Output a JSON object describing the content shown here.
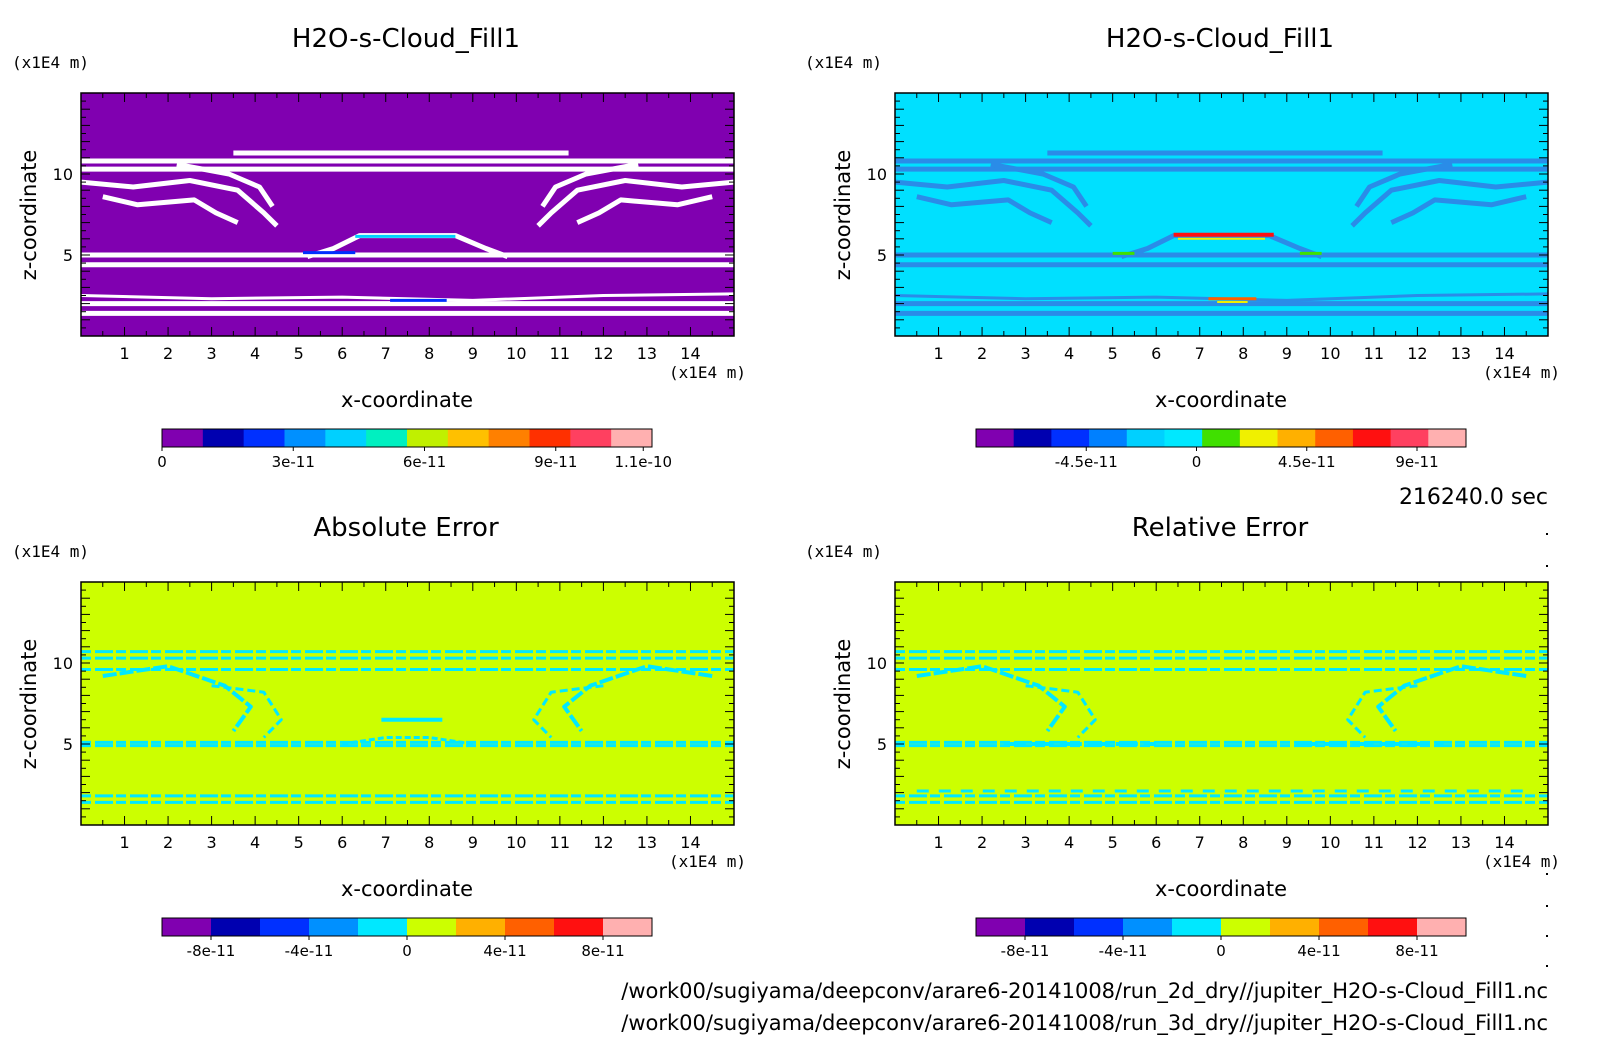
{
  "time_label": "216240.0 sec",
  "file_paths": [
    "/work00/sugiyama/deepconv/arare6-20141008/run_2d_dry//jupiter_H2O-s-Cloud_Fill1.nc",
    "/work00/sugiyama/deepconv/arare6-20141008/run_3d_dry//jupiter_H2O-s-Cloud_Fill1.nc"
  ],
  "chart_data": [
    {
      "type": "heatmap",
      "title": "H2O-s-Cloud_Fill1",
      "xlabel": "x-coordinate",
      "ylabel": "z-coordinate",
      "xunit": "(x1E4 m)",
      "yunit": "(x1E4 m)",
      "xlim": [
        0,
        15
      ],
      "ylim": [
        0,
        15
      ],
      "xticks": [
        1,
        2,
        3,
        4,
        5,
        6,
        7,
        8,
        9,
        10,
        11,
        12,
        13,
        14
      ],
      "yticks": [
        5,
        10
      ],
      "background_color": "#8000b0",
      "pattern": "white",
      "colorbar": {
        "colors": [
          "#8000b0",
          "#0000b0",
          "#0030ff",
          "#0090ff",
          "#00d0ff",
          "#00f0c0",
          "#c0f000",
          "#ffc000",
          "#ff8000",
          "#ff3000",
          "#ff4060",
          "#ffb0b0"
        ],
        "tick_labels": [
          "0",
          "3e-11",
          "6e-11",
          "9e-11",
          "1.1e-10"
        ],
        "tick_values": [
          0,
          3e-11,
          6e-11,
          9e-11,
          1.1e-10
        ],
        "range": [
          0,
          1.12e-10
        ]
      }
    },
    {
      "type": "heatmap",
      "title": "H2O-s-Cloud_Fill1",
      "xlabel": "x-coordinate",
      "ylabel": "z-coordinate",
      "xunit": "(x1E4 m)",
      "yunit": "(x1E4 m)",
      "xlim": [
        0,
        15
      ],
      "ylim": [
        0,
        15
      ],
      "xticks": [
        1,
        2,
        3,
        4,
        5,
        6,
        7,
        8,
        9,
        10,
        11,
        12,
        13,
        14
      ],
      "yticks": [
        5,
        10
      ],
      "background_color": "#00e0ff",
      "pattern": "blue",
      "colorbar": {
        "colors": [
          "#8000b0",
          "#0000b0",
          "#0030ff",
          "#0080ff",
          "#00d0ff",
          "#00e8ff",
          "#40e000",
          "#f0f000",
          "#ffb000",
          "#ff6000",
          "#ff1010",
          "#ff4060",
          "#ffb0b0"
        ],
        "tick_labels": [
          "-4.5e-11",
          "0",
          "4.5e-11",
          "9e-11"
        ],
        "tick_values": [
          -4.5e-11,
          0,
          4.5e-11,
          9e-11
        ],
        "range": [
          -9e-11,
          1.1e-10
        ]
      }
    },
    {
      "type": "heatmap",
      "title": "Absolute Error",
      "xlabel": "x-coordinate",
      "ylabel": "z-coordinate",
      "xunit": "(x1E4 m)",
      "yunit": "(x1E4 m)",
      "xlim": [
        0,
        15
      ],
      "ylim": [
        0,
        15
      ],
      "xticks": [
        1,
        2,
        3,
        4,
        5,
        6,
        7,
        8,
        9,
        10,
        11,
        12,
        13,
        14
      ],
      "yticks": [
        5,
        10
      ],
      "background_color": "#ccff00",
      "pattern": "cyan",
      "colorbar": {
        "colors": [
          "#8000b0",
          "#0000b0",
          "#0030ff",
          "#0090ff",
          "#00e8ff",
          "#ccff00",
          "#ffb000",
          "#ff6000",
          "#ff1010",
          "#ffb0b0"
        ],
        "tick_labels": [
          "-8e-11",
          "-4e-11",
          "0",
          "4e-11",
          "8e-11"
        ],
        "tick_values": [
          -8e-11,
          -4e-11,
          0,
          4e-11,
          8e-11
        ],
        "range": [
          -1e-10,
          1e-10
        ]
      }
    },
    {
      "type": "heatmap",
      "title": "Relative Error",
      "xlabel": "x-coordinate",
      "ylabel": "z-coordinate",
      "xunit": "(x1E4 m)",
      "yunit": "(x1E4 m)",
      "xlim": [
        0,
        15
      ],
      "ylim": [
        0,
        15
      ],
      "xticks": [
        1,
        2,
        3,
        4,
        5,
        6,
        7,
        8,
        9,
        10,
        11,
        12,
        13,
        14
      ],
      "yticks": [
        5,
        10
      ],
      "background_color": "#ccff00",
      "pattern": "cyan2",
      "colorbar": {
        "colors": [
          "#8000b0",
          "#0000b0",
          "#0030ff",
          "#0090ff",
          "#00e8ff",
          "#ccff00",
          "#ffb000",
          "#ff6000",
          "#ff1010",
          "#ffb0b0"
        ],
        "tick_labels": [
          "-8e-11",
          "-4e-11",
          "0",
          "4e-11",
          "8e-11"
        ],
        "tick_values": [
          -8e-11,
          -4e-11,
          0,
          4e-11,
          8e-11
        ],
        "range": [
          -1e-10,
          1e-10
        ]
      }
    }
  ]
}
